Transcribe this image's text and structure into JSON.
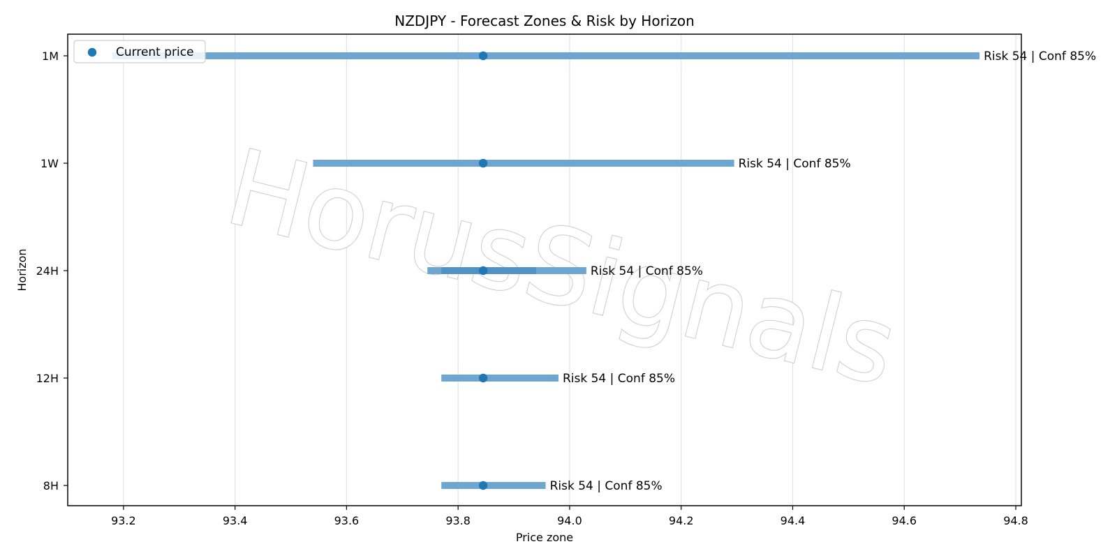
{
  "chart_data": {
    "type": "range",
    "title": "NZDJPY - Forecast Zones & Risk by Horizon",
    "xlabel": "Price zone",
    "ylabel": "Horizon",
    "xlim": [
      93.1,
      94.81
    ],
    "xticks": [
      93.2,
      93.4,
      93.6,
      93.8,
      94.0,
      94.2,
      94.4,
      94.6,
      94.8
    ],
    "xtick_labels": [
      "93.2",
      "93.4",
      "93.6",
      "93.8",
      "94.0",
      "94.2",
      "94.4",
      "94.6",
      "94.8"
    ],
    "grid": "x",
    "legend_position": "top-left",
    "legend": [
      {
        "label": "Current price",
        "marker": "dot"
      }
    ],
    "watermark": "HorusSignals",
    "colors": {
      "band": "#6da6d0",
      "band_overlay": "#2f7bbb",
      "marker": "#1f77b4",
      "grid": "#e3e3e3",
      "axis": "#000000",
      "watermark_stroke": "#cfcfcf"
    },
    "horizons": [
      {
        "label": "1M",
        "low": 93.18,
        "high": 94.735,
        "current": 93.845,
        "annotation": "Risk 54 | Conf 85%"
      },
      {
        "label": "1W",
        "low": 93.54,
        "high": 94.295,
        "current": 93.845,
        "annotation": "Risk 54 | Conf 85%"
      },
      {
        "label": "24H",
        "low": 93.745,
        "high": 94.03,
        "current": 93.845,
        "annotation": "Risk 54 | Conf 85%",
        "overlay": {
          "low": 93.77,
          "high": 93.94
        }
      },
      {
        "label": "12H",
        "low": 93.77,
        "high": 93.98,
        "current": 93.845,
        "annotation": "Risk 54 | Conf 85%"
      },
      {
        "label": "8H",
        "low": 93.77,
        "high": 93.957,
        "current": 93.845,
        "annotation": "Risk 54 | Conf 85%"
      }
    ]
  }
}
